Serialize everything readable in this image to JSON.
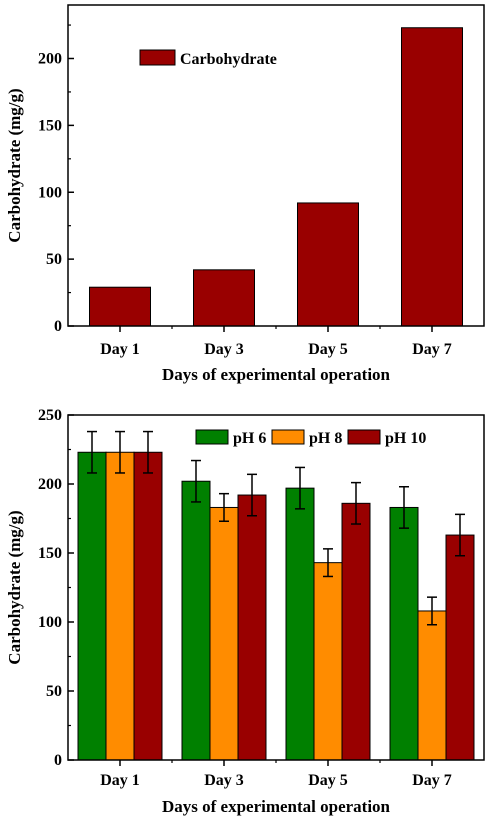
{
  "chart_data": [
    {
      "type": "bar",
      "categories": [
        "Day 1",
        "Day 3",
        "Day 5",
        "Day 7"
      ],
      "series": [
        {
          "name": "Carbohydrate",
          "color": "#990000",
          "values": [
            29,
            42,
            92,
            223
          ]
        }
      ],
      "xlabel": "Days of experimental operation",
      "ylabel": "Carbohydrate (mg/g)",
      "ylim": [
        0,
        240
      ],
      "yticks": [
        0,
        50,
        100,
        150,
        200
      ],
      "legend_position": "top-left",
      "grid": false
    },
    {
      "type": "bar",
      "categories": [
        "Day 1",
        "Day 3",
        "Day 5",
        "Day 7"
      ],
      "series": [
        {
          "name": "pH 6",
          "color": "#008000",
          "values": [
            223,
            202,
            197,
            183
          ],
          "errors": [
            15,
            15,
            15,
            15
          ]
        },
        {
          "name": "pH 8",
          "color": "#FF8C00",
          "values": [
            223,
            183,
            143,
            108
          ],
          "errors": [
            15,
            10,
            10,
            10
          ]
        },
        {
          "name": "pH 10",
          "color": "#990000",
          "values": [
            223,
            192,
            186,
            163
          ],
          "errors": [
            15,
            15,
            15,
            15
          ]
        }
      ],
      "xlabel": "Days of experimental operation",
      "ylabel": "Carbohydrate (mg/g)",
      "ylim": [
        0,
        250
      ],
      "yticks": [
        0,
        50,
        100,
        150,
        200,
        250
      ],
      "legend_position": "top-right",
      "grid": false
    }
  ]
}
